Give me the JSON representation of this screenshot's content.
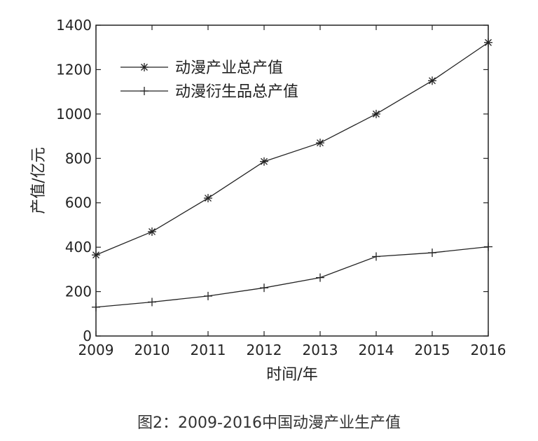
{
  "caption": "图2：2009-2016中国动漫产业生产值",
  "chart_data": {
    "type": "line",
    "title": "",
    "xlabel": "时间/年",
    "ylabel": "产值/亿元",
    "x": [
      2009,
      2010,
      2011,
      2012,
      2013,
      2014,
      2015,
      2016
    ],
    "xlim": [
      2009,
      2016
    ],
    "ylim": [
      0,
      1400
    ],
    "yticks": [
      0,
      200,
      400,
      600,
      800,
      1000,
      1200,
      1400
    ],
    "legend_position": "top-left",
    "grid": false,
    "series": [
      {
        "name": "动漫产业总产值",
        "marker": "asterisk",
        "values": [
          365,
          470,
          621,
          786,
          870,
          1000,
          1150,
          1322
        ]
      },
      {
        "name": "动漫衍生品总产值",
        "marker": "plus",
        "values": [
          130,
          153,
          180,
          217,
          263,
          358,
          375,
          402
        ]
      }
    ]
  }
}
